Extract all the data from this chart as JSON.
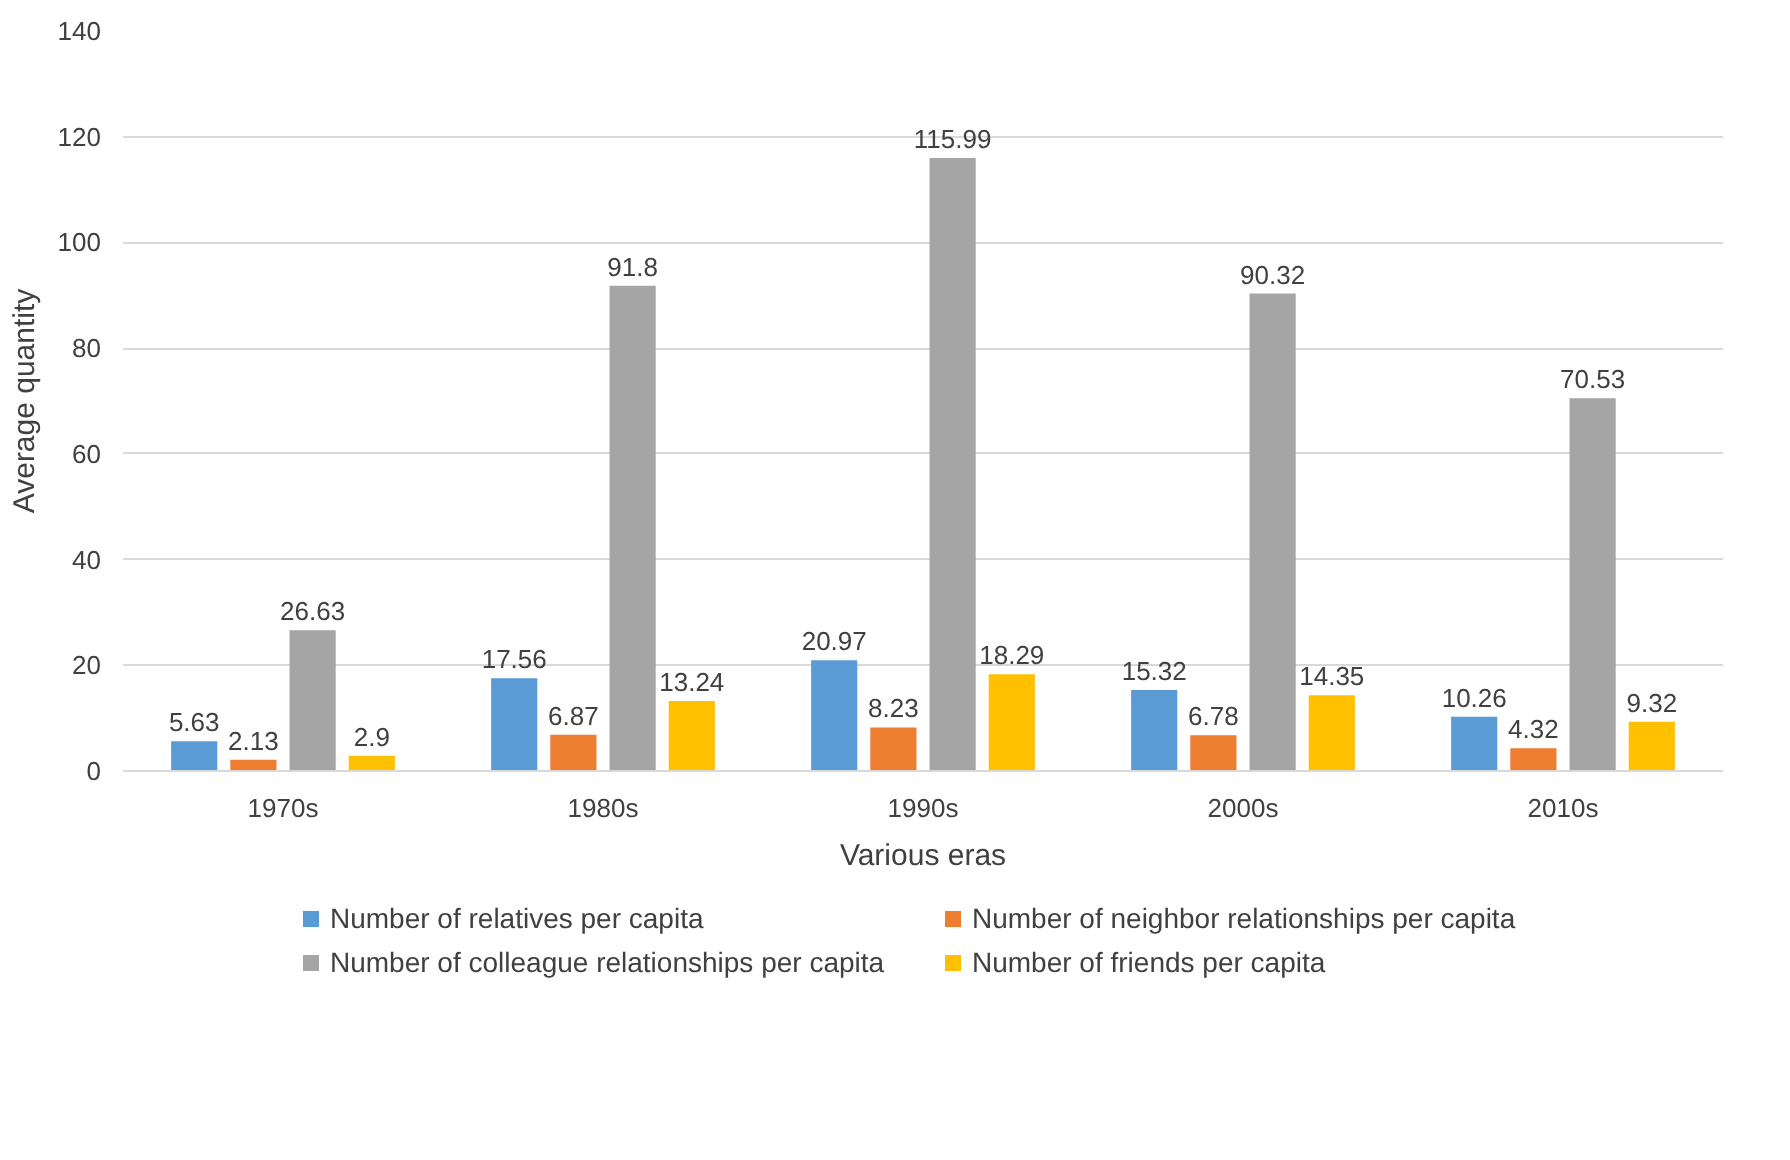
{
  "chart_data": {
    "type": "bar",
    "xlabel": "Various eras",
    "ylabel": "Average quantity",
    "categories": [
      "1970s",
      "1980s",
      "1990s",
      "2000s",
      "2010s"
    ],
    "series": [
      {
        "name": "Number of relatives per capita",
        "color": "#5b9bd5",
        "values": [
          5.63,
          17.56,
          20.97,
          15.32,
          10.26
        ]
      },
      {
        "name": "Number of neighbor relationships per capita",
        "color": "#ed7d31",
        "values": [
          2.13,
          6.87,
          8.23,
          6.78,
          4.32
        ]
      },
      {
        "name": "Number of colleague relationships per capita",
        "color": "#a5a5a5",
        "values": [
          26.63,
          91.8,
          115.99,
          90.32,
          70.53
        ]
      },
      {
        "name": "Number of friends per capita",
        "color": "#ffc000",
        "values": [
          2.9,
          13.24,
          18.29,
          14.35,
          9.32
        ]
      }
    ],
    "ylim": [
      0,
      140
    ],
    "yticks": [
      0,
      20,
      40,
      60,
      80,
      100,
      120,
      140
    ],
    "grid": "y",
    "legend": "bottom",
    "data_labels": true
  }
}
